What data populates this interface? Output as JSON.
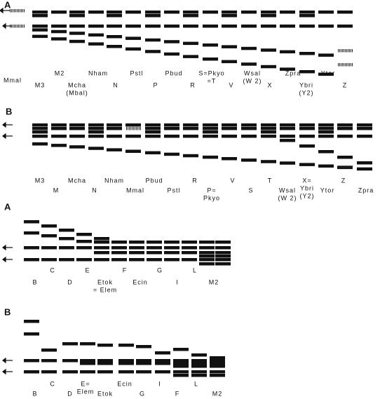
{
  "panels": [
    {
      "label": "A",
      "lanes": [
        "Mmal",
        "M2",
        "M3",
        "Nham",
        [
          "Mcha",
          "(Mbal)"
        ],
        "Pstl",
        "N",
        "Pbud",
        "P",
        [
          "S=Pkyo",
          "=T"
        ],
        "R",
        [
          "Wsal",
          "(W 2)"
        ],
        "V",
        "Zpra",
        "X",
        "Ytor",
        [
          "Ybri",
          "(Y2)"
        ],
        "Z"
      ]
    },
    {
      "label": "B",
      "lanes": [
        "M3",
        "M",
        "Mcha",
        "N",
        "Nham",
        "Mmal",
        "Pbud",
        "Pstl",
        "R",
        [
          "P=",
          "Pkyo"
        ],
        "V",
        "S",
        "T",
        [
          "Wsal",
          "(W 2)"
        ],
        [
          "X=",
          "Ybri",
          "(Y2)"
        ],
        "Ytor",
        "Z",
        "Zpra"
      ]
    },
    {
      "label": "A",
      "lanes": [
        "B",
        "C",
        "D",
        "E",
        [
          "Etok",
          "= Elem"
        ],
        "F",
        "Ecin",
        "G",
        "I",
        "L",
        "M2"
      ]
    },
    {
      "label": "B",
      "lanes": [
        "B",
        "C",
        "D",
        [
          "E=",
          "Elem"
        ],
        "Etok",
        "Ecin",
        "G",
        "I",
        "F",
        "L",
        "M2"
      ]
    }
  ]
}
